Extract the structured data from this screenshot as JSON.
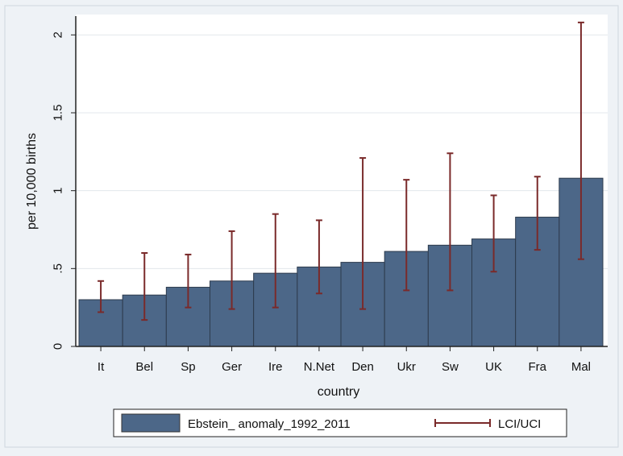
{
  "chart_data": {
    "type": "bar",
    "title": "",
    "xlabel": "country",
    "ylabel": "per 10,000 births",
    "categories": [
      "It",
      "Bel",
      "Sp",
      "Ger",
      "Ire",
      "N.Net",
      "Den",
      "Ukr",
      "Sw",
      "UK",
      "Fra",
      "Mal"
    ],
    "series": [
      {
        "name": "Ebstein_ anomaly_1992_2011",
        "values": [
          0.3,
          0.33,
          0.38,
          0.42,
          0.47,
          0.51,
          0.54,
          0.61,
          0.65,
          0.69,
          0.83,
          1.08
        ],
        "color": "#4c6788"
      },
      {
        "name": "LCI/UCI",
        "type": "errorbar",
        "lower": [
          0.22,
          0.17,
          0.25,
          0.24,
          0.25,
          0.34,
          0.24,
          0.36,
          0.36,
          0.48,
          0.62,
          0.56
        ],
        "upper": [
          0.42,
          0.6,
          0.59,
          0.74,
          0.85,
          0.81,
          1.21,
          1.07,
          1.24,
          0.97,
          1.09,
          2.08
        ],
        "color": "#7a2a2a"
      }
    ],
    "ylim": [
      0,
      2.1
    ],
    "yticks": [
      0,
      0.5,
      1,
      1.5,
      2
    ],
    "ytick_labels": [
      "0",
      ".5",
      "1",
      "1.5",
      "2"
    ],
    "grid": true,
    "legend_position": "bottom"
  }
}
